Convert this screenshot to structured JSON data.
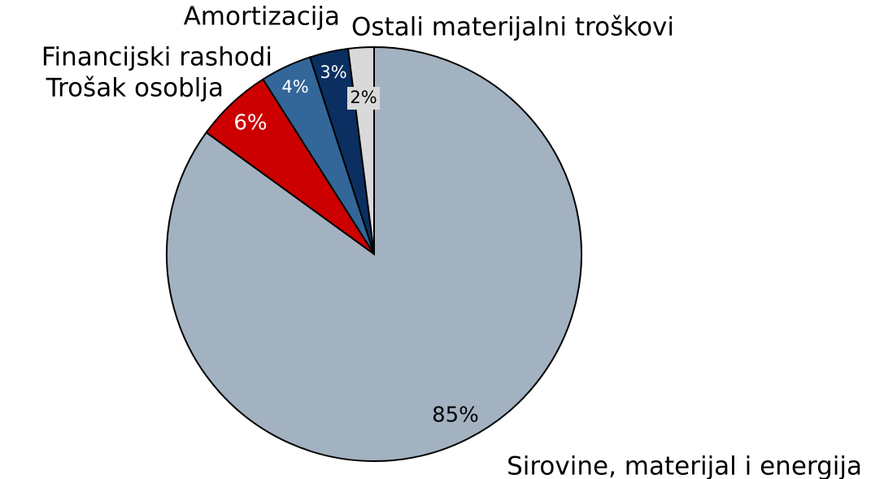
{
  "chart_data": {
    "type": "pie",
    "categories": [
      "Sirovine, materijal i energija",
      "Trošak osoblja",
      "Financijski rashodi",
      "Amortizacija",
      "Ostali materijalni troškovi"
    ],
    "values": [
      85,
      6,
      4,
      3,
      2
    ],
    "value_labels": [
      "85%",
      "6%",
      "4%",
      "3%",
      "2%"
    ],
    "colors": [
      "#a3b2c1",
      "#cc0000",
      "#336699",
      "#0b2f60",
      "#d9d9d9"
    ]
  }
}
